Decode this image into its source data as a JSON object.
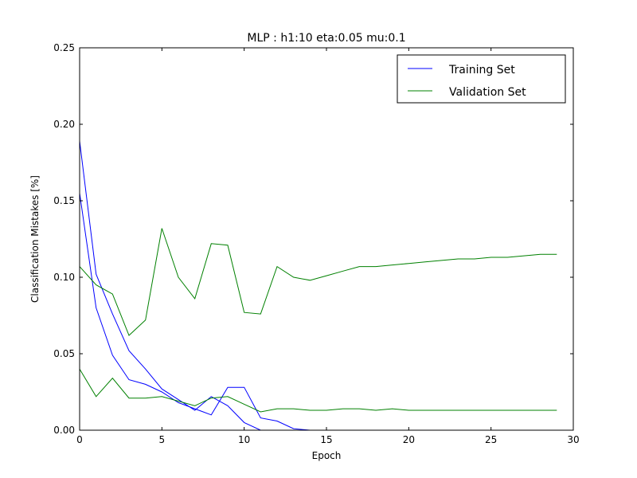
{
  "chart_data": {
    "type": "line",
    "title": "MLP : h1:10 eta:0.05 mu:0.1",
    "xlabel": "Epoch",
    "ylabel": "Classification Mistakes [%]",
    "xlim": [
      0,
      30
    ],
    "ylim": [
      0,
      0.25
    ],
    "xticks": [
      "0",
      "5",
      "10",
      "15",
      "20",
      "25",
      "30"
    ],
    "yticks": [
      "0.00",
      "0.05",
      "0.10",
      "0.15",
      "0.20",
      "0.25"
    ],
    "grid": false,
    "legend_position": "top-right",
    "legend": [
      {
        "label": "Training Set",
        "color": "#0000ff"
      },
      {
        "label": "Validation Set",
        "color": "#008000"
      }
    ],
    "series": [
      {
        "name": "Training Set",
        "color": "#0000ff",
        "x": [
          0,
          1,
          2,
          3,
          4,
          5,
          6,
          7,
          8,
          9,
          10,
          11,
          12,
          13,
          14,
          15,
          16,
          17,
          18,
          19,
          20,
          21,
          22,
          23,
          24,
          25,
          26,
          27,
          28,
          29
        ],
        "values": [
          0.189,
          0.102,
          0.076,
          0.052,
          0.04,
          0.027,
          0.02,
          0.013,
          0.022,
          0.016,
          0.005,
          0.0,
          0.0,
          0.0,
          0.0,
          0.0,
          0.0,
          0.0,
          0.0,
          0.0,
          0.0,
          0.0,
          0.0,
          0.0,
          0.0,
          0.0,
          0.0,
          0.0,
          0.0,
          0.0
        ]
      },
      {
        "name": "Training Set",
        "color": "#0000ff",
        "x": [
          0,
          1,
          2,
          3,
          4,
          5,
          6,
          7,
          8,
          9,
          10,
          11,
          12,
          13,
          14,
          15,
          16,
          17,
          18,
          19,
          20,
          21,
          22,
          23,
          24,
          25,
          26,
          27,
          28,
          29
        ],
        "values": [
          0.155,
          0.08,
          0.049,
          0.033,
          0.03,
          0.025,
          0.018,
          0.014,
          0.01,
          0.028,
          0.028,
          0.008,
          0.006,
          0.001,
          0.0,
          0.0,
          0.0,
          0.0,
          0.0,
          0.0,
          0.0,
          0.0,
          0.0,
          0.0,
          0.0,
          0.0,
          0.0,
          0.0,
          0.0,
          0.0
        ]
      },
      {
        "name": "Validation Set",
        "color": "#008000",
        "x": [
          0,
          1,
          2,
          3,
          4,
          5,
          6,
          7,
          8,
          9,
          10,
          11,
          12,
          13,
          14,
          15,
          16,
          17,
          18,
          19,
          20,
          21,
          22,
          23,
          24,
          25,
          26,
          27,
          28,
          29
        ],
        "values": [
          0.107,
          0.095,
          0.089,
          0.062,
          0.072,
          0.132,
          0.1,
          0.086,
          0.122,
          0.121,
          0.077,
          0.076,
          0.107,
          0.1,
          0.098,
          0.101,
          0.104,
          0.107,
          0.107,
          0.108,
          0.109,
          0.11,
          0.111,
          0.112,
          0.112,
          0.113,
          0.113,
          0.114,
          0.115,
          0.115
        ]
      },
      {
        "name": "Validation Set",
        "color": "#008000",
        "x": [
          0,
          1,
          2,
          3,
          4,
          5,
          6,
          7,
          8,
          9,
          10,
          11,
          12,
          13,
          14,
          15,
          16,
          17,
          18,
          19,
          20,
          21,
          22,
          23,
          24,
          25,
          26,
          27,
          28,
          29
        ],
        "values": [
          0.04,
          0.022,
          0.034,
          0.021,
          0.021,
          0.022,
          0.019,
          0.016,
          0.021,
          0.022,
          0.017,
          0.012,
          0.014,
          0.014,
          0.013,
          0.013,
          0.014,
          0.014,
          0.013,
          0.014,
          0.013,
          0.013,
          0.013,
          0.013,
          0.013,
          0.013,
          0.013,
          0.013,
          0.013,
          0.013
        ]
      }
    ]
  }
}
